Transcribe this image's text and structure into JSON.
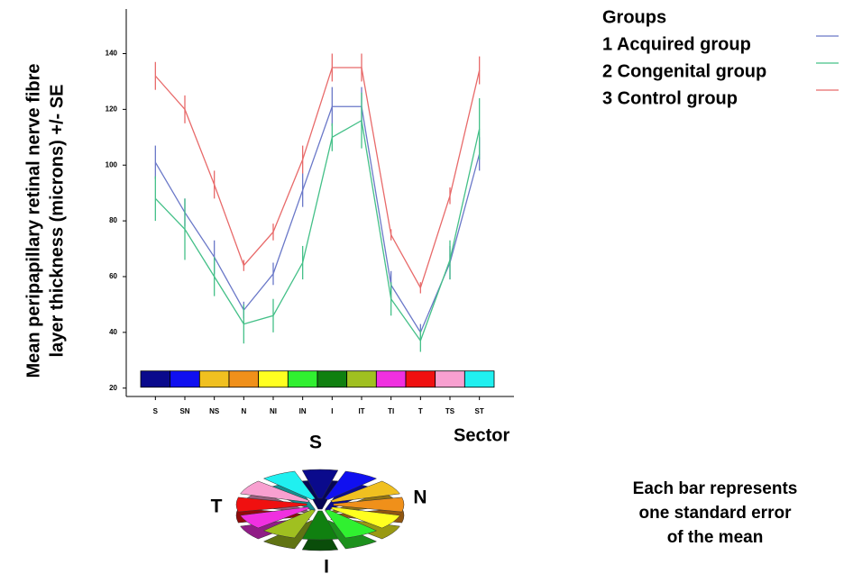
{
  "chart_data": {
    "type": "line",
    "y_label": [
      "Mean peripapillary retinal nerve fibre",
      "layer thickness (microns) +/- SE"
    ],
    "x_label": "Sector",
    "categories": [
      "S",
      "SN",
      "NS",
      "N",
      "NI",
      "IN",
      "I",
      "IT",
      "TI",
      "T",
      "TS",
      "ST"
    ],
    "sector_colors": [
      "#0a0a8c",
      "#1010f0",
      "#f0c020",
      "#f0901a",
      "#ffff20",
      "#30f030",
      "#108010",
      "#a0c020",
      "#f030e0",
      "#f01010",
      "#f8a0d0",
      "#20f0f0"
    ],
    "ylim": [
      17,
      156
    ],
    "yticks": [
      20,
      40,
      60,
      80,
      100,
      120,
      140
    ],
    "legend_title": "Groups",
    "series": [
      {
        "name": "1 Acquired group",
        "color": "#6a78c8",
        "values": [
          101,
          83,
          67,
          48,
          61,
          91,
          121,
          121,
          57,
          40,
          65,
          104
        ],
        "errors": [
          6,
          5,
          6,
          3,
          4,
          6,
          7,
          7,
          5,
          3,
          6,
          6
        ]
      },
      {
        "name": "2 Congenital group",
        "color": "#44c088",
        "values": [
          88,
          77,
          60,
          43,
          46,
          65,
          110,
          116,
          52,
          37,
          66,
          113
        ],
        "errors": [
          8,
          11,
          7,
          7,
          6,
          6,
          5,
          10,
          6,
          4,
          7,
          11
        ]
      },
      {
        "name": "3 Control group",
        "color": "#e86a6a",
        "values": [
          132,
          120,
          93,
          64,
          76,
          102,
          135,
          135,
          75,
          56,
          89,
          134
        ],
        "errors": [
          5,
          5,
          5,
          2,
          3,
          5,
          5,
          5,
          2,
          2,
          3,
          5
        ]
      }
    ],
    "note": [
      "Each bar represents",
      "one standard error",
      "of the mean"
    ],
    "diagram_labels": {
      "top": "S",
      "right": "N",
      "left": "T",
      "bottom": "I"
    }
  }
}
